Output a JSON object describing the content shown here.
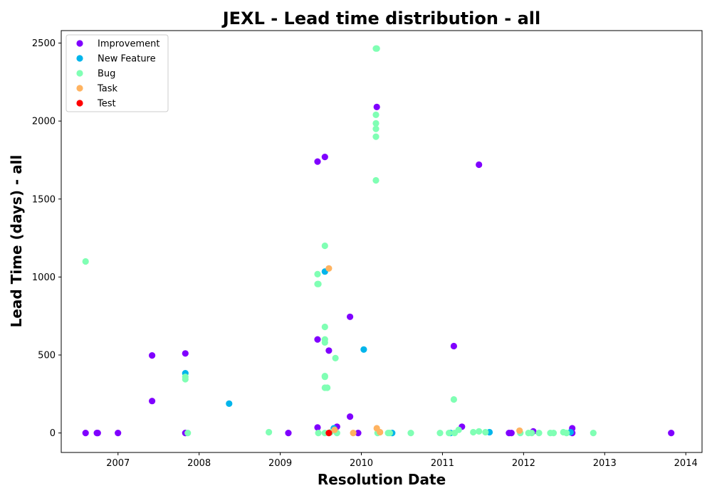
{
  "chart_data": {
    "type": "scatter",
    "title": "JEXL - Lead time distribution - all",
    "xlabel": "Resolution Date",
    "ylabel": "Lead Time (days) - all",
    "xlim": [
      2006.3,
      2014.2
    ],
    "ylim": [
      -125,
      2580
    ],
    "x_ticks": [
      "2007",
      "2008",
      "2009",
      "2010",
      "2011",
      "2012",
      "2013",
      "2014"
    ],
    "y_ticks": [
      "0",
      "500",
      "1000",
      "1500",
      "2000",
      "2500"
    ],
    "grid": false,
    "legend_position": "top-left",
    "series": [
      {
        "name": "Improvement",
        "color": "#8000ff",
        "points": [
          [
            2006.6,
            0
          ],
          [
            2006.74,
            0
          ],
          [
            2006.75,
            0
          ],
          [
            2007.0,
            0
          ],
          [
            2007.42,
            205
          ],
          [
            2007.42,
            497
          ],
          [
            2007.83,
            510
          ],
          [
            2007.83,
            0
          ],
          [
            2009.1,
            0
          ],
          [
            2009.46,
            600
          ],
          [
            2009.46,
            1740
          ],
          [
            2009.46,
            35
          ],
          [
            2009.55,
            1770
          ],
          [
            2009.6,
            528
          ],
          [
            2009.7,
            40
          ],
          [
            2009.86,
            745
          ],
          [
            2009.86,
            105
          ],
          [
            2009.96,
            0
          ],
          [
            2010.19,
            2090
          ],
          [
            2011.14,
            557
          ],
          [
            2011.24,
            40
          ],
          [
            2011.45,
            1720
          ],
          [
            2011.82,
            0
          ],
          [
            2011.85,
            0
          ],
          [
            2012.12,
            10
          ],
          [
            2012.6,
            30
          ],
          [
            2012.6,
            0
          ],
          [
            2013.82,
            0
          ]
        ]
      },
      {
        "name": "New Feature",
        "color": "#00b5eb",
        "points": [
          [
            2007.83,
            383
          ],
          [
            2008.37,
            188
          ],
          [
            2009.55,
            1035
          ],
          [
            2009.66,
            30
          ],
          [
            2010.03,
            535
          ],
          [
            2010.38,
            0
          ],
          [
            2011.1,
            0
          ],
          [
            2011.58,
            5
          ],
          [
            2012.58,
            5
          ]
        ]
      },
      {
        "name": "Bug",
        "color": "#80ffb4",
        "points": [
          [
            2006.6,
            1100
          ],
          [
            2007.83,
            345
          ],
          [
            2007.83,
            360
          ],
          [
            2007.86,
            0
          ],
          [
            2008.86,
            5
          ],
          [
            2009.46,
            1018
          ],
          [
            2009.46,
            955
          ],
          [
            2009.47,
            955
          ],
          [
            2009.55,
            1200
          ],
          [
            2009.55,
            680
          ],
          [
            2009.55,
            600
          ],
          [
            2009.55,
            580
          ],
          [
            2009.55,
            365
          ],
          [
            2009.55,
            360
          ],
          [
            2009.55,
            290
          ],
          [
            2009.58,
            290
          ],
          [
            2009.68,
            480
          ],
          [
            2009.47,
            0
          ],
          [
            2009.55,
            0
          ],
          [
            2009.62,
            5
          ],
          [
            2009.7,
            0
          ],
          [
            2010.18,
            2465
          ],
          [
            2010.19,
            2465
          ],
          [
            2010.18,
            2040
          ],
          [
            2010.18,
            1985
          ],
          [
            2010.18,
            1950
          ],
          [
            2010.18,
            1900
          ],
          [
            2010.18,
            1620
          ],
          [
            2010.2,
            0
          ],
          [
            2010.33,
            0
          ],
          [
            2010.35,
            0
          ],
          [
            2010.61,
            0
          ],
          [
            2010.97,
            0
          ],
          [
            2011.08,
            0
          ],
          [
            2011.14,
            215
          ],
          [
            2011.15,
            0
          ],
          [
            2011.2,
            20
          ],
          [
            2011.38,
            5
          ],
          [
            2011.45,
            10
          ],
          [
            2011.53,
            5
          ],
          [
            2011.96,
            0
          ],
          [
            2012.06,
            0
          ],
          [
            2012.1,
            0
          ],
          [
            2012.19,
            0
          ],
          [
            2012.33,
            0
          ],
          [
            2012.37,
            0
          ],
          [
            2012.49,
            5
          ],
          [
            2012.53,
            0
          ],
          [
            2012.86,
            0
          ]
        ]
      },
      {
        "name": "Task",
        "color": "#ffb360",
        "points": [
          [
            2009.6,
            1055
          ],
          [
            2009.67,
            20
          ],
          [
            2009.9,
            0
          ],
          [
            2010.19,
            30
          ],
          [
            2010.23,
            5
          ],
          [
            2011.95,
            15
          ]
        ]
      },
      {
        "name": "Test",
        "color": "#ff0000",
        "points": [
          [
            2009.6,
            0
          ]
        ]
      }
    ]
  }
}
